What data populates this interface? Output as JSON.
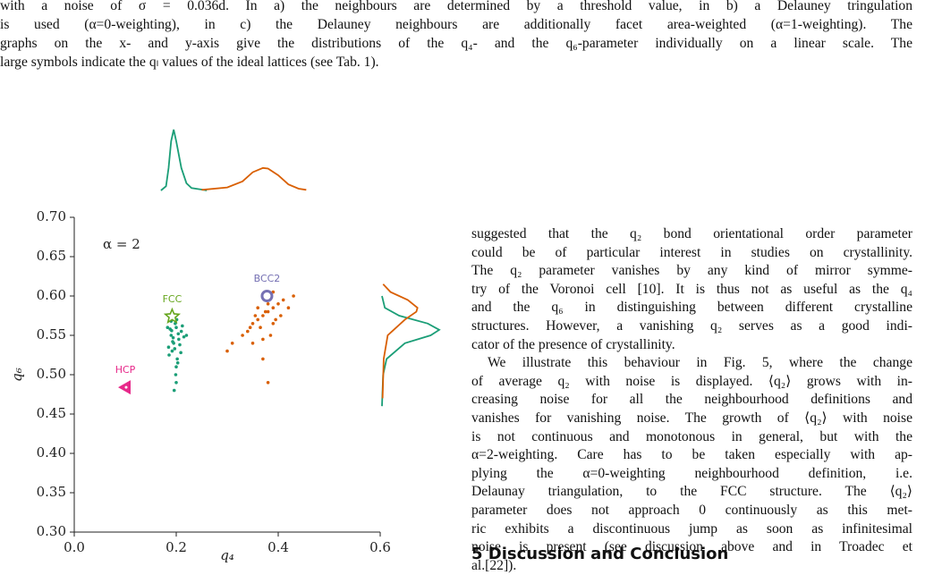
{
  "caption": {
    "lines": [
      "with a noise of σ = 0.036d. In a) the neighbours are determined by a threshold value, in b) a Delauney tringulation",
      "is used (α=0-weighting), in c) the Delauney neighbours are additionally facet area-weighted (α=1-weighting). The",
      "graphs on the x- and y-axis give the distributions of the q₄- and the q₆-parameter individually on a linear scale. The",
      "large symbols indicate the qₗ values of the ideal lattices (see Tab. 1)."
    ]
  },
  "chart_data": {
    "type": "scatter",
    "xlabel": "q₄",
    "ylabel": "q₆",
    "xlim": [
      0,
      0.6
    ],
    "xticks": [
      {
        "value": 0,
        "label": "0.0"
      },
      0.2,
      0.4,
      0.6
    ],
    "ylim": [
      0.3,
      0.7
    ],
    "yticks": [
      {
        "value": 0.3,
        "label": "0.30"
      },
      0.35,
      {
        "value": 0.4,
        "label": "0.40"
      },
      0.45,
      {
        "value": 0.5,
        "label": "0.50"
      },
      0.55,
      {
        "value": 0.6,
        "label": "0.60"
      },
      0.65,
      {
        "value": 0.7,
        "label": "0.70"
      }
    ],
    "text_annotation": "α = 2",
    "series": [
      {
        "color": "#1b9e77",
        "x": [
          0.19,
          0.2,
          0.195,
          0.205,
          0.185,
          0.21,
          0.198,
          0.192,
          0.202,
          0.188,
          0.215,
          0.196,
          0.2,
          0.193,
          0.207,
          0.19,
          0.199,
          0.204,
          0.186,
          0.212,
          0.197,
          0.201,
          0.194,
          0.209,
          0.191,
          0.203,
          0.22,
          0.183,
          0.2,
          0.196
        ],
        "values": [
          0.55,
          0.56,
          0.54,
          0.545,
          0.535,
          0.555,
          0.565,
          0.53,
          0.52,
          0.558,
          0.548,
          0.575,
          0.51,
          0.542,
          0.538,
          0.568,
          0.5,
          0.552,
          0.525,
          0.562,
          0.533,
          0.57,
          0.547,
          0.528,
          0.556,
          0.515,
          0.55,
          0.56,
          0.49,
          0.48
        ]
      },
      {
        "color": "#d95f02",
        "x": [
          0.36,
          0.38,
          0.37,
          0.39,
          0.35,
          0.4,
          0.375,
          0.365,
          0.385,
          0.34,
          0.41,
          0.33,
          0.395,
          0.355,
          0.38,
          0.37,
          0.42,
          0.31,
          0.39,
          0.36,
          0.345,
          0.405,
          0.375,
          0.385,
          0.3,
          0.43,
          0.37,
          0.35,
          0.39,
          0.38
        ],
        "values": [
          0.57,
          0.58,
          0.575,
          0.585,
          0.565,
          0.59,
          0.58,
          0.56,
          0.6,
          0.555,
          0.595,
          0.55,
          0.57,
          0.575,
          0.59,
          0.545,
          0.585,
          0.54,
          0.565,
          0.585,
          0.56,
          0.575,
          0.595,
          0.55,
          0.53,
          0.6,
          0.52,
          0.54,
          0.605,
          0.49
        ]
      }
    ],
    "x_density": [
      {
        "color": "#1b9e77",
        "x": [
          0.17,
          0.18,
          0.185,
          0.19,
          0.195,
          0.2,
          0.21,
          0.22,
          0.23,
          0.25,
          0.26
        ],
        "values": [
          0,
          0.07,
          0.37,
          0.81,
          1,
          0.81,
          0.37,
          0.12,
          0.04,
          0.015,
          0
        ]
      },
      {
        "color": "#d95f02",
        "x": [
          0.25,
          0.3,
          0.33,
          0.35,
          0.37,
          0.38,
          0.4,
          0.42,
          0.44,
          0.455
        ],
        "values": [
          0.01,
          0.05,
          0.15,
          0.3,
          0.37,
          0.36,
          0.25,
          0.1,
          0.03,
          0.01
        ]
      }
    ],
    "y_density": [
      {
        "color": "#1b9e77",
        "y": [
          0.46,
          0.5,
          0.52,
          0.54,
          0.55,
          0.557,
          0.565,
          0.575,
          0.585,
          0.6
        ],
        "values": [
          0,
          0.02,
          0.08,
          0.4,
          0.85,
          1,
          0.8,
          0.3,
          0.05,
          0
        ]
      },
      {
        "color": "#d95f02",
        "y": [
          0.47,
          0.52,
          0.55,
          0.57,
          0.58,
          0.585,
          0.595,
          0.605,
          0.615
        ],
        "values": [
          0.01,
          0.03,
          0.1,
          0.4,
          0.6,
          0.62,
          0.45,
          0.15,
          0.02
        ]
      }
    ],
    "annotations": [
      {
        "label": "HCP",
        "x": 0.1,
        "y": 0.484,
        "color": "#e7298a",
        "marker": "triangle-left"
      },
      {
        "label": "FCC",
        "x": 0.192,
        "y": 0.574,
        "color": "#66a61e",
        "marker": "star"
      },
      {
        "label": "BCC2",
        "x": 0.378,
        "y": 0.6,
        "color": "#7570b3",
        "marker": "circle"
      }
    ]
  },
  "body": {
    "paragraphs": [
      {
        "lines": [
          "suggested that the q₂ bond orientational order parameter",
          "could be of particular interest in studies on crystallinity.",
          "The q₂ parameter vanishes by any kind of mirror symme-",
          "try of the Voronoi cell [10]. It is thus not as useful as the q₄",
          "and the q₆ in distinguishing between different crystalline",
          "structures. However, a vanishing q₂ serves as a good indi-",
          "cator of the presence of crystallinity."
        ]
      },
      {
        "lines": [
          "We illustrate this behaviour in Fig. 5, where the change",
          "of average q₂ with noise is displayed. ⟨q₂⟩ grows with in-",
          "creasing noise for all the neighbourhood definitions and",
          "vanishes for vanishing noise. The growth of ⟨q₂⟩ with noise",
          "is not continuous and monotonous in general, but with the",
          "α=2-weighting. Care has to be taken especially with ap-",
          "plying the α=0-weighting neighbourhood definition, i.e.",
          "Delaunay triangulation, to the FCC structure. The ⟨q₂⟩",
          "parameter does not approach 0 continuously as this met-",
          "ric exhibits a discontinuous jump as soon as infinitesimal",
          "noise is present (see discussion above and in Troadec et",
          "al.[22])."
        ]
      }
    ],
    "section_heading": "5 Discussion and Conclusion"
  }
}
